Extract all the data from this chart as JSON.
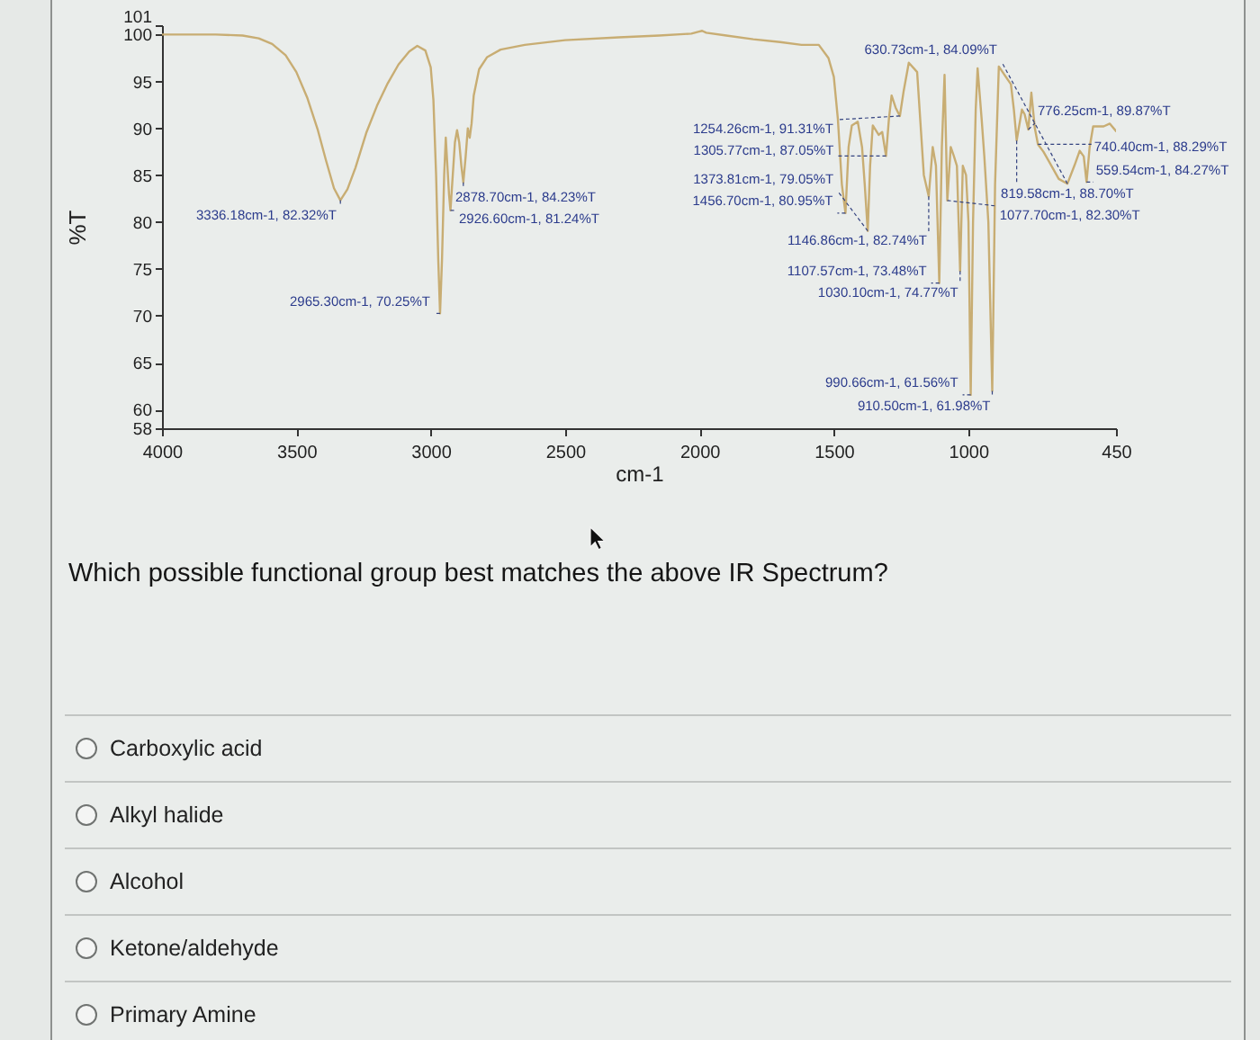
{
  "chart_data": {
    "type": "line",
    "xlabel": "cm-1",
    "ylabel": "%T",
    "x": [
      4000,
      3800,
      3700,
      3640,
      3590,
      3540,
      3500,
      3460,
      3420,
      3390,
      3360,
      3336.18,
      3310,
      3280,
      3240,
      3200,
      3160,
      3120,
      3080,
      3050,
      3020,
      3000,
      2990,
      2980,
      2972,
      2965.3,
      2958,
      2950,
      2944,
      2938,
      2932,
      2926.6,
      2918,
      2910,
      2902,
      2894,
      2886,
      2878.7,
      2870,
      2862,
      2855,
      2848,
      2840,
      2820,
      2790,
      2740,
      2650,
      2500,
      2300,
      2150,
      2030,
      2005,
      1990,
      1975,
      1900,
      1800,
      1700,
      1620,
      1556,
      1520,
      1500,
      1485,
      1470,
      1456.7,
      1445,
      1433,
      1411,
      1395,
      1385,
      1373.81,
      1365,
      1355,
      1333,
      1320,
      1305.77,
      1295,
      1285,
      1270,
      1254.26,
      1240,
      1221,
      1190,
      1165,
      1146.86,
      1132,
      1120,
      1107.57,
      1098,
      1088,
      1077.7,
      1065,
      1054,
      1042,
      1030.1,
      1020,
      1008,
      999,
      990.66,
      982,
      972,
      965,
      950,
      940,
      925,
      910.5,
      900,
      886,
      860,
      841,
      830,
      819.58,
      800,
      790,
      776.25,
      765,
      752,
      740.4,
      720,
      700,
      663,
      630.73,
      605,
      585,
      570,
      559.54,
      548,
      535,
      496,
      473,
      450
    ],
    "series": [
      {
        "color": "#c8ad73",
        "values": [
          100,
          100,
          99.9,
          99.6,
          99,
          97.8,
          96,
          93.3,
          89.8,
          86.6,
          83.6,
          82.32,
          83.5,
          85.8,
          89.5,
          92.4,
          94.8,
          96.8,
          98.2,
          98.8,
          98.3,
          96.5,
          93,
          85,
          76,
          70.25,
          76,
          85,
          89,
          86,
          83,
          81.24,
          85,
          88.5,
          89.8,
          88.5,
          86,
          84.23,
          87,
          90,
          89,
          90.5,
          93.5,
          96.3,
          97.6,
          98.4,
          98.9,
          99.4,
          99.7,
          99.9,
          100.1,
          100.3,
          100.4,
          100.2,
          99.9,
          99.5,
          99.2,
          98.9,
          98.9,
          97.5,
          95.5,
          91,
          84,
          80.95,
          88,
          90.3,
          90.7,
          88,
          84,
          79.05,
          86,
          90.3,
          89.3,
          89.6,
          87.05,
          91,
          93.5,
          92.2,
          91.31,
          94,
          97,
          96,
          85,
          82.74,
          88,
          86,
          73.48,
          88,
          95.7,
          82.3,
          88,
          87.1,
          86,
          74.77,
          86,
          85,
          80,
          61.56,
          80,
          92,
          96.4,
          91,
          87,
          80,
          61.98,
          84,
          96.6,
          95.5,
          94.7,
          92,
          88.7,
          92,
          91.5,
          89.87,
          93.8,
          90,
          88.29,
          87.5,
          86.5,
          84.6,
          84.09,
          86,
          87.6,
          87,
          84.27,
          88,
          90.2,
          90.2,
          90.5,
          89.7
        ]
      }
    ],
    "xlim": [
      4000,
      450
    ],
    "xticks": [
      4000,
      3500,
      3000,
      2500,
      2000,
      1500,
      1000,
      450
    ],
    "ylim": [
      58,
      101
    ],
    "yticks": [
      58,
      60,
      65,
      70,
      75,
      80,
      85,
      90,
      95,
      100,
      101
    ],
    "annotations": [
      {
        "text": "3336.18cm-1, 82.32%T",
        "x": 3336.18,
        "y": 82.32
      },
      {
        "text": "2878.70cm-1, 84.23%T",
        "x": 2878.7,
        "y": 84.23
      },
      {
        "text": "2926.60cm-1, 81.24%T",
        "x": 2926.6,
        "y": 81.24
      },
      {
        "text": "2965.30cm-1, 70.25%T",
        "x": 2965.3,
        "y": 70.25
      },
      {
        "text": "1254.26cm-1, 91.31%T",
        "x": 1254.26,
        "y": 91.31
      },
      {
        "text": "1305.77cm-1, 87.05%T",
        "x": 1305.77,
        "y": 87.05
      },
      {
        "text": "776.25cm-1, 89.87%T",
        "x": 776.25,
        "y": 89.87
      },
      {
        "text": "819.58cm-1, 88.70%T",
        "x": 819.58,
        "y": 88.7
      },
      {
        "text": "740.40cm-1, 88.29%T",
        "x": 740.4,
        "y": 88.29
      },
      {
        "text": "630.73cm-1, 84.09%T",
        "x": 630.73,
        "y": 84.09
      },
      {
        "text": "559.54cm-1, 84.27%T",
        "x": 559.54,
        "y": 84.27
      },
      {
        "text": "1146.86cm-1, 82.74%T",
        "x": 1146.86,
        "y": 82.74
      },
      {
        "text": "1077.70cm-1, 82.30%T",
        "x": 1077.7,
        "y": 82.3
      },
      {
        "text": "1456.70cm-1, 80.95%T",
        "x": 1456.7,
        "y": 80.95
      },
      {
        "text": "1373.81cm-1, 79.05%T",
        "x": 1373.81,
        "y": 79.05
      },
      {
        "text": "1030.10cm-1, 74.77%T",
        "x": 1030.1,
        "y": 74.77
      },
      {
        "text": "1107.57cm-1, 73.48%T",
        "x": 1107.57,
        "y": 73.48
      },
      {
        "text": "990.66cm-1, 61.56%T",
        "x": 990.66,
        "y": 61.56
      },
      {
        "text": "910.50cm-1, 61.98%T",
        "x": 910.5,
        "y": 61.98
      },
      "Which possible functional group best matches the above IR Spectrum?",
      "Carboxylic acid",
      "Alkyl halide",
      "Alcohol",
      "Ketone/aldehyde",
      "Primary Amine"
    ]
  }
}
